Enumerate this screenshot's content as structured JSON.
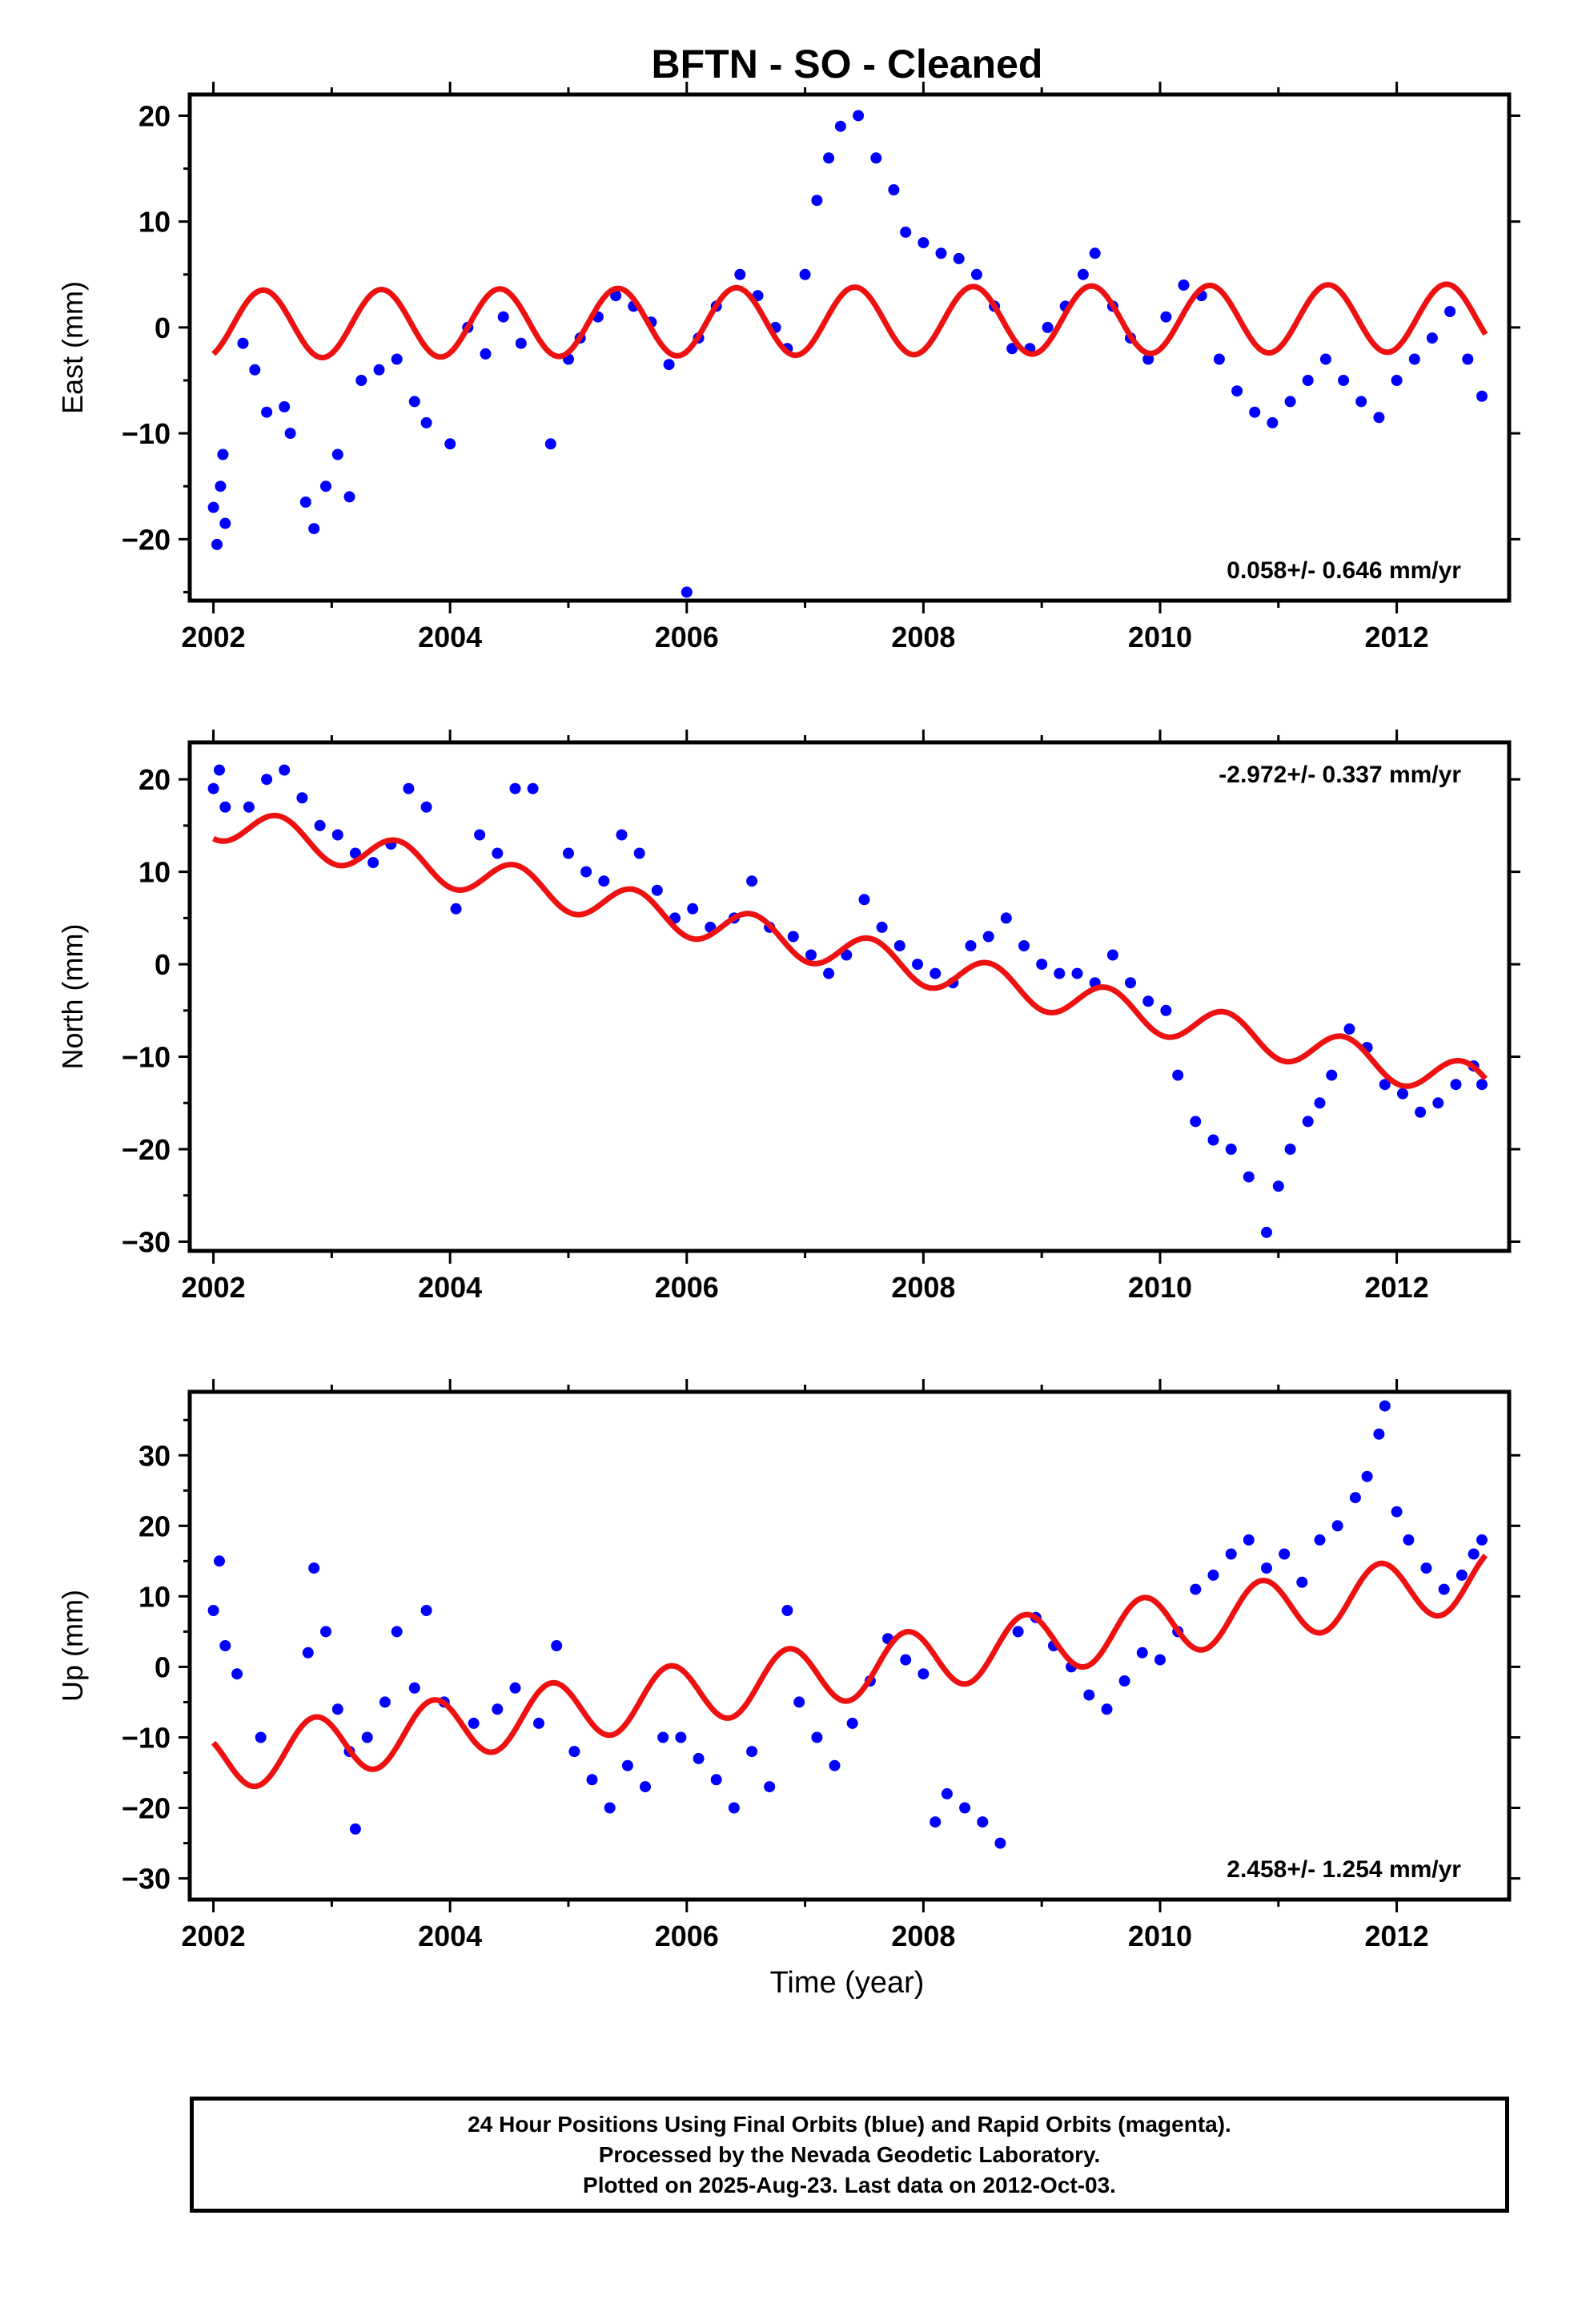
{
  "title": "BFTN  - SO - Cleaned",
  "xlabel": "Time (year)",
  "x_tick_labels": [
    "2002",
    "2004",
    "2006",
    "2008",
    "2010",
    "2012"
  ],
  "footer": {
    "line1": "24 Hour Positions Using Final Orbits (blue) and Rapid Orbits (magenta).",
    "line2": "Processed by the Nevada Geodetic Laboratory.",
    "line3": "Plotted on 2025-Aug-23. Last data on 2012-Oct-03."
  },
  "colors": {
    "observations": "#0000ff",
    "model": "#ee1111",
    "axes": "#000000"
  },
  "chart_data": [
    {
      "type": "scatter",
      "ylabel": "East (mm)",
      "rate_label": "0.058+/- 0.646 mm/yr",
      "rate_label_position": "bottom-right",
      "xlim": [
        2001.8,
        2012.95
      ],
      "ylim": [
        -25.8,
        22
      ],
      "yticks": [
        -20,
        -10,
        0,
        10,
        20
      ],
      "grid": false,
      "series": [
        {
          "role": "daily positions (blue)",
          "points": [
            [
              2002.0,
              -17
            ],
            [
              2002.03,
              -20.5
            ],
            [
              2002.06,
              -15
            ],
            [
              2002.08,
              -12
            ],
            [
              2002.1,
              -18.5
            ],
            [
              2002.25,
              -1.5
            ],
            [
              2002.35,
              -4
            ],
            [
              2002.45,
              -8
            ],
            [
              2002.6,
              -7.5
            ],
            [
              2002.65,
              -10
            ],
            [
              2002.78,
              -16.5
            ],
            [
              2002.85,
              -19
            ],
            [
              2002.95,
              -15
            ],
            [
              2003.05,
              -12
            ],
            [
              2003.15,
              -16
            ],
            [
              2003.25,
              -5
            ],
            [
              2003.4,
              -4
            ],
            [
              2003.55,
              -3
            ],
            [
              2003.7,
              -7
            ],
            [
              2003.8,
              -9
            ],
            [
              2004.0,
              -11
            ],
            [
              2004.15,
              0
            ],
            [
              2004.3,
              -2.5
            ],
            [
              2004.45,
              1
            ],
            [
              2004.6,
              -1.5
            ],
            [
              2004.85,
              -11
            ],
            [
              2005.0,
              -3
            ],
            [
              2005.1,
              -1
            ],
            [
              2005.25,
              1
            ],
            [
              2005.4,
              3
            ],
            [
              2005.55,
              2
            ],
            [
              2005.7,
              0.5
            ],
            [
              2005.85,
              -3.5
            ],
            [
              2006.0,
              -25
            ],
            [
              2006.1,
              -1
            ],
            [
              2006.25,
              2
            ],
            [
              2006.45,
              5
            ],
            [
              2006.6,
              3
            ],
            [
              2006.75,
              0
            ],
            [
              2006.85,
              -2
            ],
            [
              2007.0,
              5
            ],
            [
              2007.1,
              12
            ],
            [
              2007.2,
              16
            ],
            [
              2007.3,
              19
            ],
            [
              2007.45,
              20
            ],
            [
              2007.6,
              16
            ],
            [
              2007.75,
              13
            ],
            [
              2007.85,
              9
            ],
            [
              2008.0,
              8
            ],
            [
              2008.15,
              7
            ],
            [
              2008.3,
              6.5
            ],
            [
              2008.45,
              5
            ],
            [
              2008.6,
              2
            ],
            [
              2008.75,
              -2
            ],
            [
              2008.9,
              -2
            ],
            [
              2009.05,
              0
            ],
            [
              2009.2,
              2
            ],
            [
              2009.35,
              5
            ],
            [
              2009.45,
              7
            ],
            [
              2009.6,
              2
            ],
            [
              2009.75,
              -1
            ],
            [
              2009.9,
              -3
            ],
            [
              2010.05,
              1
            ],
            [
              2010.2,
              4
            ],
            [
              2010.35,
              3
            ],
            [
              2010.5,
              -3
            ],
            [
              2010.65,
              -6
            ],
            [
              2010.8,
              -8
            ],
            [
              2010.95,
              -9
            ],
            [
              2011.1,
              -7
            ],
            [
              2011.25,
              -5
            ],
            [
              2011.4,
              -3
            ],
            [
              2011.55,
              -5
            ],
            [
              2011.7,
              -7
            ],
            [
              2011.85,
              -8.5
            ],
            [
              2012.0,
              -5
            ],
            [
              2012.15,
              -3
            ],
            [
              2012.3,
              -1
            ],
            [
              2012.45,
              1.5
            ],
            [
              2012.6,
              -3
            ],
            [
              2012.72,
              -6.5
            ]
          ]
        },
        {
          "role": "model fit (red)",
          "curve": "sinusoid",
          "center": [
            [
              2002.0,
              0.3
            ],
            [
              2012.75,
              0.9
            ]
          ],
          "amplitude_mm": 3.2,
          "phase_peak_fraction": 0.42
        }
      ]
    },
    {
      "type": "scatter",
      "ylabel": "North (mm)",
      "rate_label": "-2.972+/- 0.337 mm/yr",
      "rate_label_position": "top-right",
      "xlim": [
        2001.8,
        2012.95
      ],
      "ylim": [
        -31,
        24
      ],
      "yticks": [
        -30,
        -20,
        -10,
        0,
        10,
        20
      ],
      "grid": false,
      "series": [
        {
          "role": "daily positions (blue)",
          "points": [
            [
              2002.0,
              19
            ],
            [
              2002.05,
              21
            ],
            [
              2002.1,
              17
            ],
            [
              2002.3,
              17
            ],
            [
              2002.45,
              20
            ],
            [
              2002.6,
              21
            ],
            [
              2002.75,
              18
            ],
            [
              2002.9,
              15
            ],
            [
              2003.05,
              14
            ],
            [
              2003.2,
              12
            ],
            [
              2003.35,
              11
            ],
            [
              2003.5,
              13
            ],
            [
              2003.65,
              19
            ],
            [
              2003.8,
              17
            ],
            [
              2004.05,
              6
            ],
            [
              2004.25,
              14
            ],
            [
              2004.4,
              12
            ],
            [
              2004.55,
              19
            ],
            [
              2004.7,
              19
            ],
            [
              2005.0,
              12
            ],
            [
              2005.15,
              10
            ],
            [
              2005.3,
              9
            ],
            [
              2005.45,
              14
            ],
            [
              2005.6,
              12
            ],
            [
              2005.75,
              8
            ],
            [
              2005.9,
              5
            ],
            [
              2006.05,
              6
            ],
            [
              2006.2,
              4
            ],
            [
              2006.4,
              5
            ],
            [
              2006.55,
              9
            ],
            [
              2006.7,
              4
            ],
            [
              2006.9,
              3
            ],
            [
              2007.05,
              1
            ],
            [
              2007.2,
              -1
            ],
            [
              2007.35,
              1
            ],
            [
              2007.5,
              7
            ],
            [
              2007.65,
              4
            ],
            [
              2007.8,
              2
            ],
            [
              2007.95,
              0
            ],
            [
              2008.1,
              -1
            ],
            [
              2008.25,
              -2
            ],
            [
              2008.4,
              2
            ],
            [
              2008.55,
              3
            ],
            [
              2008.7,
              5
            ],
            [
              2008.85,
              2
            ],
            [
              2009.0,
              0
            ],
            [
              2009.15,
              -1
            ],
            [
              2009.3,
              -1
            ],
            [
              2009.45,
              -2
            ],
            [
              2009.6,
              1
            ],
            [
              2009.75,
              -2
            ],
            [
              2009.9,
              -4
            ],
            [
              2010.05,
              -5
            ],
            [
              2010.15,
              -12
            ],
            [
              2010.3,
              -17
            ],
            [
              2010.45,
              -19
            ],
            [
              2010.6,
              -20
            ],
            [
              2010.75,
              -23
            ],
            [
              2010.9,
              -29
            ],
            [
              2011.0,
              -24
            ],
            [
              2011.1,
              -20
            ],
            [
              2011.25,
              -17
            ],
            [
              2011.35,
              -15
            ],
            [
              2011.45,
              -12
            ],
            [
              2011.6,
              -7
            ],
            [
              2011.75,
              -9
            ],
            [
              2011.9,
              -13
            ],
            [
              2012.05,
              -14
            ],
            [
              2012.2,
              -16
            ],
            [
              2012.35,
              -15
            ],
            [
              2012.5,
              -13
            ],
            [
              2012.65,
              -11
            ],
            [
              2012.72,
              -13
            ]
          ]
        },
        {
          "role": "model fit (red)",
          "curve": "sinusoid",
          "center": [
            [
              2002.0,
              15.5
            ],
            [
              2012.75,
              -13.0
            ]
          ],
          "amplitude_mm": 2.0,
          "phase_peak_fraction": 0.55
        }
      ]
    },
    {
      "type": "scatter",
      "ylabel": "Up (mm)",
      "rate_label": "2.458+/- 1.254 mm/yr",
      "rate_label_position": "bottom-right",
      "xlim": [
        2001.8,
        2012.95
      ],
      "ylim": [
        -33,
        39
      ],
      "yticks": [
        -30,
        -20,
        -10,
        0,
        10,
        20,
        30
      ],
      "grid": false,
      "series": [
        {
          "role": "daily positions (blue)",
          "points": [
            [
              2002.0,
              8
            ],
            [
              2002.05,
              15
            ],
            [
              2002.1,
              3
            ],
            [
              2002.2,
              -1
            ],
            [
              2002.4,
              -10
            ],
            [
              2002.8,
              2
            ],
            [
              2002.85,
              14
            ],
            [
              2002.95,
              5
            ],
            [
              2003.05,
              -6
            ],
            [
              2003.15,
              -12
            ],
            [
              2003.2,
              -23
            ],
            [
              2003.3,
              -10
            ],
            [
              2003.45,
              -5
            ],
            [
              2003.55,
              5
            ],
            [
              2003.7,
              -3
            ],
            [
              2003.8,
              8
            ],
            [
              2003.95,
              -5
            ],
            [
              2004.2,
              -8
            ],
            [
              2004.4,
              -6
            ],
            [
              2004.55,
              -3
            ],
            [
              2004.75,
              -8
            ],
            [
              2004.9,
              3
            ],
            [
              2005.05,
              -12
            ],
            [
              2005.2,
              -16
            ],
            [
              2005.35,
              -20
            ],
            [
              2005.5,
              -14
            ],
            [
              2005.65,
              -17
            ],
            [
              2005.8,
              -10
            ],
            [
              2005.95,
              -10
            ],
            [
              2006.1,
              -13
            ],
            [
              2006.25,
              -16
            ],
            [
              2006.4,
              -20
            ],
            [
              2006.55,
              -12
            ],
            [
              2006.7,
              -17
            ],
            [
              2006.85,
              8
            ],
            [
              2006.95,
              -5
            ],
            [
              2007.1,
              -10
            ],
            [
              2007.25,
              -14
            ],
            [
              2007.4,
              -8
            ],
            [
              2007.55,
              -2
            ],
            [
              2007.7,
              4
            ],
            [
              2007.85,
              1
            ],
            [
              2008.0,
              -1
            ],
            [
              2008.1,
              -22
            ],
            [
              2008.2,
              -18
            ],
            [
              2008.35,
              -20
            ],
            [
              2008.5,
              -22
            ],
            [
              2008.65,
              -25
            ],
            [
              2008.8,
              5
            ],
            [
              2008.95,
              7
            ],
            [
              2009.1,
              3
            ],
            [
              2009.25,
              0
            ],
            [
              2009.4,
              -4
            ],
            [
              2009.55,
              -6
            ],
            [
              2009.7,
              -2
            ],
            [
              2009.85,
              2
            ],
            [
              2010.0,
              1
            ],
            [
              2010.15,
              5
            ],
            [
              2010.3,
              11
            ],
            [
              2010.45,
              13
            ],
            [
              2010.6,
              16
            ],
            [
              2010.75,
              18
            ],
            [
              2010.9,
              14
            ],
            [
              2011.05,
              16
            ],
            [
              2011.2,
              12
            ],
            [
              2011.35,
              18
            ],
            [
              2011.5,
              20
            ],
            [
              2011.65,
              24
            ],
            [
              2011.75,
              27
            ],
            [
              2011.85,
              33
            ],
            [
              2011.9,
              37
            ],
            [
              2012.0,
              22
            ],
            [
              2012.1,
              18
            ],
            [
              2012.25,
              14
            ],
            [
              2012.4,
              11
            ],
            [
              2012.55,
              13
            ],
            [
              2012.65,
              16
            ],
            [
              2012.72,
              18
            ]
          ]
        },
        {
          "role": "model fit (red)",
          "curve": "sinusoid",
          "center": [
            [
              2002.0,
              -13.5
            ],
            [
              2012.75,
              12.5
            ]
          ],
          "amplitude_mm": 4.3,
          "phase_peak_fraction": 0.86
        }
      ]
    }
  ]
}
